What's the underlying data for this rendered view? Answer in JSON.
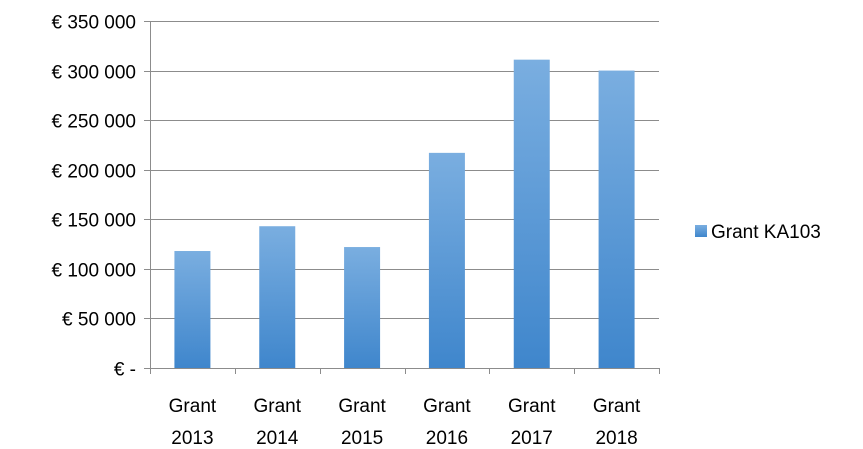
{
  "chart_data": {
    "type": "bar",
    "categories": [
      [
        "Grant",
        "2013"
      ],
      [
        "Grant",
        "2014"
      ],
      [
        "Grant",
        "2015"
      ],
      [
        "Grant",
        "2016"
      ],
      [
        "Grant",
        "2017"
      ],
      [
        "Grant",
        "2018"
      ]
    ],
    "series": [
      {
        "name": "Grant KA103",
        "values": [
          118000,
          143000,
          122000,
          217000,
          311000,
          300000
        ]
      }
    ],
    "title": "",
    "xlabel": "",
    "ylabel": "",
    "ylim": [
      0,
      350000
    ],
    "yticks": [
      0,
      50000,
      100000,
      150000,
      200000,
      250000,
      300000,
      350000
    ],
    "ytick_labels": [
      "€ -",
      "€ 50 000",
      "€ 100 000",
      "€ 150 000",
      "€ 200 000",
      "€ 250 000",
      "€ 300 000",
      "€ 350 000"
    ],
    "grid": true,
    "legend_position": "right",
    "colors": {
      "bar_top": "#7AAEE0",
      "bar_bottom": "#3F86CC",
      "grid": "#8C8C8C",
      "axis": "#8C8C8C"
    }
  }
}
